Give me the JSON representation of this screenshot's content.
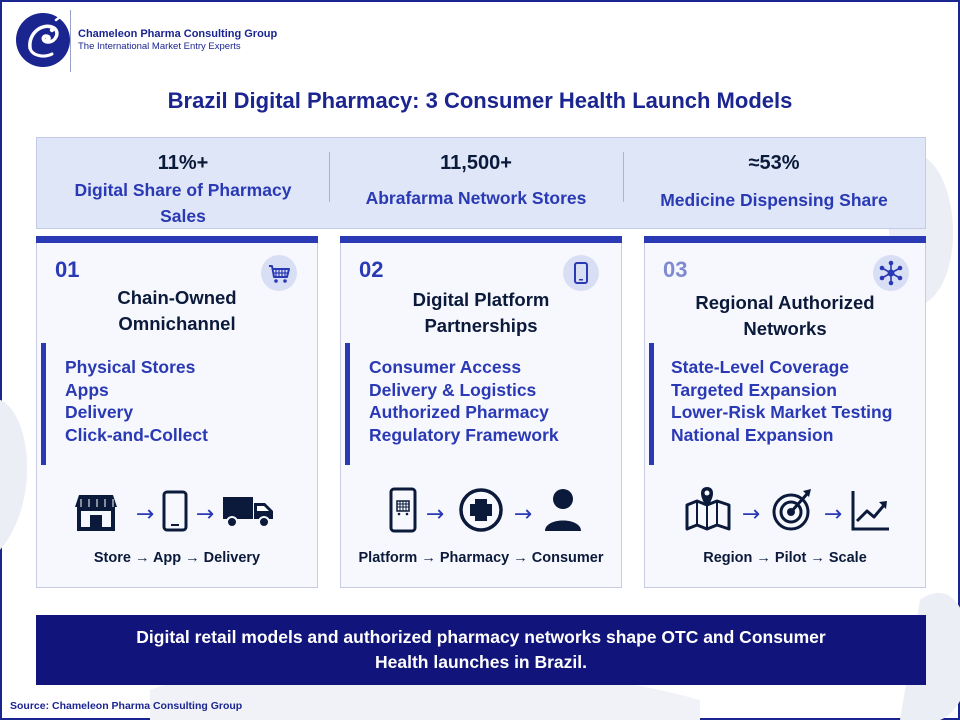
{
  "brand": {
    "name": "Chameleon Pharma Consulting Group",
    "tagline": "The International Market Entry Experts"
  },
  "title": "Brazil Digital Pharmacy: 3 Consumer Health Launch Models",
  "stats": [
    {
      "value": "11%+",
      "label_lines": [
        "Digital Share of Pharmacy",
        "Sales"
      ]
    },
    {
      "value": "11,500+",
      "label_lines": [
        "Abrafarma Network Stores"
      ]
    },
    {
      "value": "≈53%",
      "label_lines": [
        "Medicine Dispensing Share"
      ]
    }
  ],
  "cards": [
    {
      "number": "01",
      "icon": "shopping-cart-icon",
      "title_lines": [
        "Chain-Owned",
        "Omnichannel"
      ],
      "items": [
        "Physical Stores",
        "Apps",
        "Delivery",
        "Click-and-Collect"
      ],
      "flow_icons": [
        "storefront-icon",
        "smartphone-icon",
        "delivery-truck-icon"
      ],
      "caption": "Store → App → Delivery"
    },
    {
      "number": "02",
      "icon": "mobile-phone-icon",
      "title_lines": [
        "Digital Platform",
        "Partnerships"
      ],
      "items": [
        "Consumer Access",
        "Delivery & Logistics",
        "Authorized Pharmacy",
        "Regulatory Framework"
      ],
      "flow_icons": [
        "phone-cart-icon",
        "medical-cross-icon",
        "person-icon"
      ],
      "caption": "Platform → Pharmacy → Consumer"
    },
    {
      "number": "03",
      "icon": "network-hub-icon",
      "title_lines": [
        "Regional Authorized",
        "Networks"
      ],
      "items": [
        "State-Level Coverage",
        "Targeted Expansion",
        "Lower-Risk Market Testing",
        "National Expansion"
      ],
      "flow_icons": [
        "map-pin-icon",
        "target-icon",
        "growth-chart-icon"
      ],
      "caption": "Region → Pilot → Scale"
    }
  ],
  "banner_lines": [
    "Digital retail models and authorized pharmacy networks shape OTC and Consumer",
    "Health launches in Brazil."
  ],
  "source": "Source: Chameleon Pharma Consulting Group",
  "colors": {
    "accent": "#2a39b4",
    "navy": "#11147a",
    "band": "#dfe6f7"
  }
}
